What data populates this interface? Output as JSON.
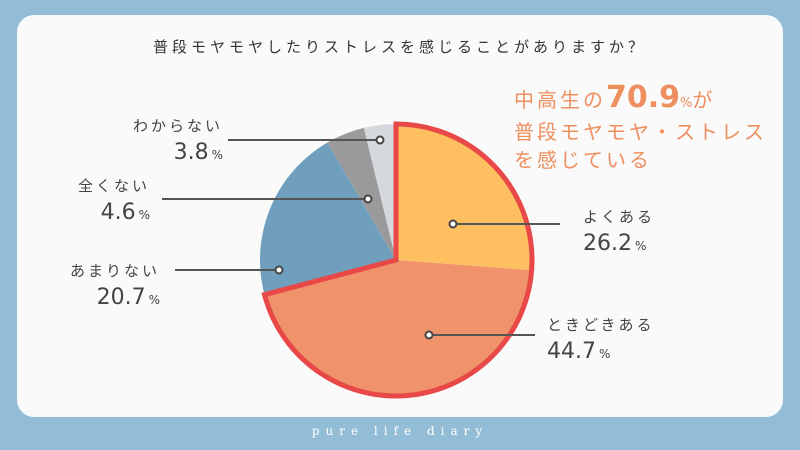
{
  "title": "普段モヤモヤしたりストレスを感じることがありますか？",
  "highlight": {
    "line1_prefix": "中高生の",
    "line1_value": "70.9",
    "line1_suffix_pct": "%",
    "line1_suffix": "が",
    "line2": "普段モヤモヤ・ストレス",
    "line3": "を感じている"
  },
  "labels": [
    {
      "category": "よくある",
      "value": "26.2",
      "unit": "%"
    },
    {
      "category": "ときどきある",
      "value": "44.7",
      "unit": "%"
    },
    {
      "category": "あまりない",
      "value": "20.7",
      "unit": "%"
    },
    {
      "category": "全くない",
      "value": "4.6",
      "unit": "%"
    },
    {
      "category": "わからない",
      "value": "3.8",
      "unit": "%"
    }
  ],
  "footer": "pure life diary",
  "colors": {
    "background": "#93bcd6",
    "card": "#fafafa",
    "accent_text": "#ee8f5f",
    "highlight_border": "#e84848"
  },
  "chart_data": {
    "type": "pie",
    "title": "普段モヤモヤしたりストレスを感じることがありますか？",
    "categories": [
      "よくある",
      "ときどきある",
      "あまりない",
      "全くない",
      "わからない"
    ],
    "values": [
      26.2,
      44.7,
      20.7,
      4.6,
      3.8
    ],
    "unit": "%",
    "colors": [
      "#fdbf60",
      "#f0936b",
      "#6f9fbd",
      "#9a9a9a",
      "#d5d9dd"
    ],
    "start_angle": "12 o'clock, clockwise",
    "highlighted_group": {
      "categories": [
        "よくある",
        "ときどきある"
      ],
      "total": 70.9,
      "outline_color": "#e84848"
    },
    "annotation": "中高生の70.9%が普段モヤモヤ・ストレスを感じている",
    "legend": "none (callout labels with leader lines)"
  }
}
